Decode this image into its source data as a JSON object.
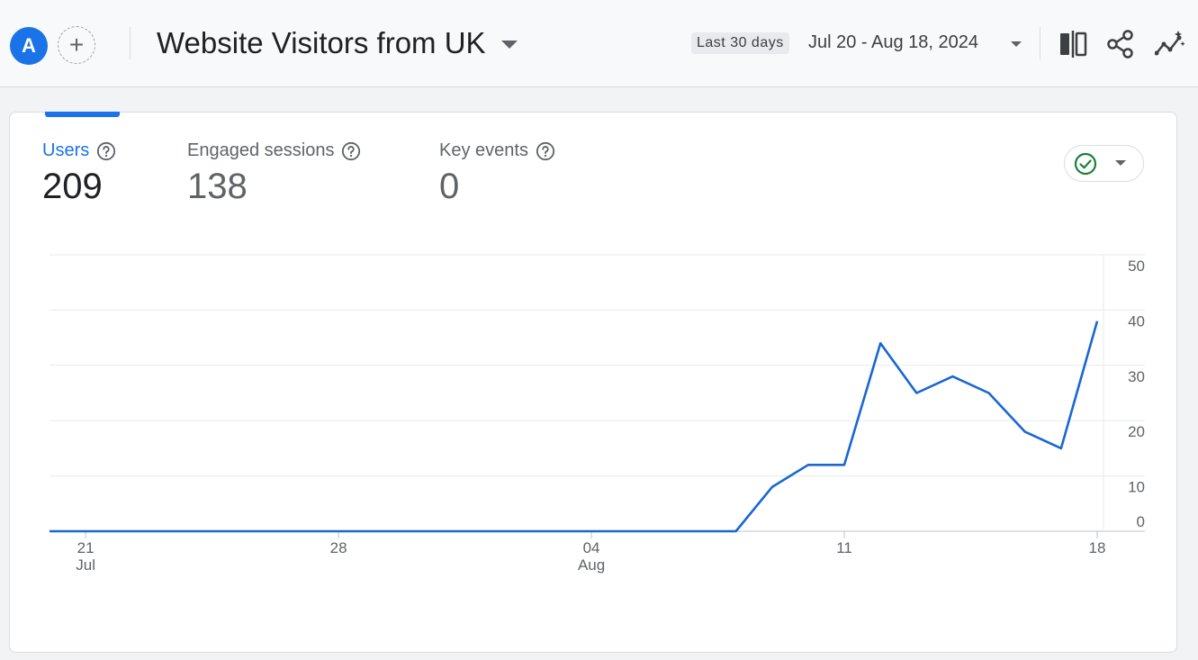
{
  "header": {
    "avatar_letter": "A",
    "add_label": "+",
    "title": "Website Visitors from UK",
    "range_chip": "Last 30 days",
    "range_text": "Jul 20 - Aug 18, 2024",
    "icons": [
      "compare-icon",
      "share-icon",
      "insights-icon"
    ]
  },
  "metrics": [
    {
      "label": "Users",
      "value": "209"
    },
    {
      "label": "Engaged sessions",
      "value": "138"
    },
    {
      "label": "Key events",
      "value": "0"
    }
  ],
  "colors": {
    "accent": "#1a73e8",
    "line": "#1967d2",
    "check": "#188038"
  },
  "chart_data": {
    "type": "line",
    "x": [
      "2024-07-20",
      "2024-07-21",
      "2024-07-22",
      "2024-07-23",
      "2024-07-24",
      "2024-07-25",
      "2024-07-26",
      "2024-07-27",
      "2024-07-28",
      "2024-07-29",
      "2024-07-30",
      "2024-07-31",
      "2024-08-01",
      "2024-08-02",
      "2024-08-03",
      "2024-08-04",
      "2024-08-05",
      "2024-08-06",
      "2024-08-07",
      "2024-08-08",
      "2024-08-09",
      "2024-08-10",
      "2024-08-11",
      "2024-08-12",
      "2024-08-13",
      "2024-08-14",
      "2024-08-15",
      "2024-08-16",
      "2024-08-17",
      "2024-08-18"
    ],
    "series": [
      {
        "values": [
          0,
          0,
          0,
          0,
          0,
          0,
          0,
          0,
          0,
          0,
          0,
          0,
          0,
          0,
          0,
          0,
          0,
          0,
          0,
          0,
          8,
          12,
          12,
          34,
          25,
          28,
          25,
          18,
          15,
          38
        ]
      }
    ],
    "x_ticks": [
      {
        "label": "21",
        "sub": "Jul",
        "index": 1
      },
      {
        "label": "28",
        "sub": "",
        "index": 8
      },
      {
        "label": "04",
        "sub": "Aug",
        "index": 15
      },
      {
        "label": "11",
        "sub": "",
        "index": 22
      },
      {
        "label": "18",
        "sub": "",
        "index": 29
      }
    ],
    "y_ticks": [
      0,
      10,
      20,
      30,
      40,
      50
    ],
    "ylim": [
      0,
      50
    ],
    "grid": true,
    "y_axis_side": "right"
  }
}
